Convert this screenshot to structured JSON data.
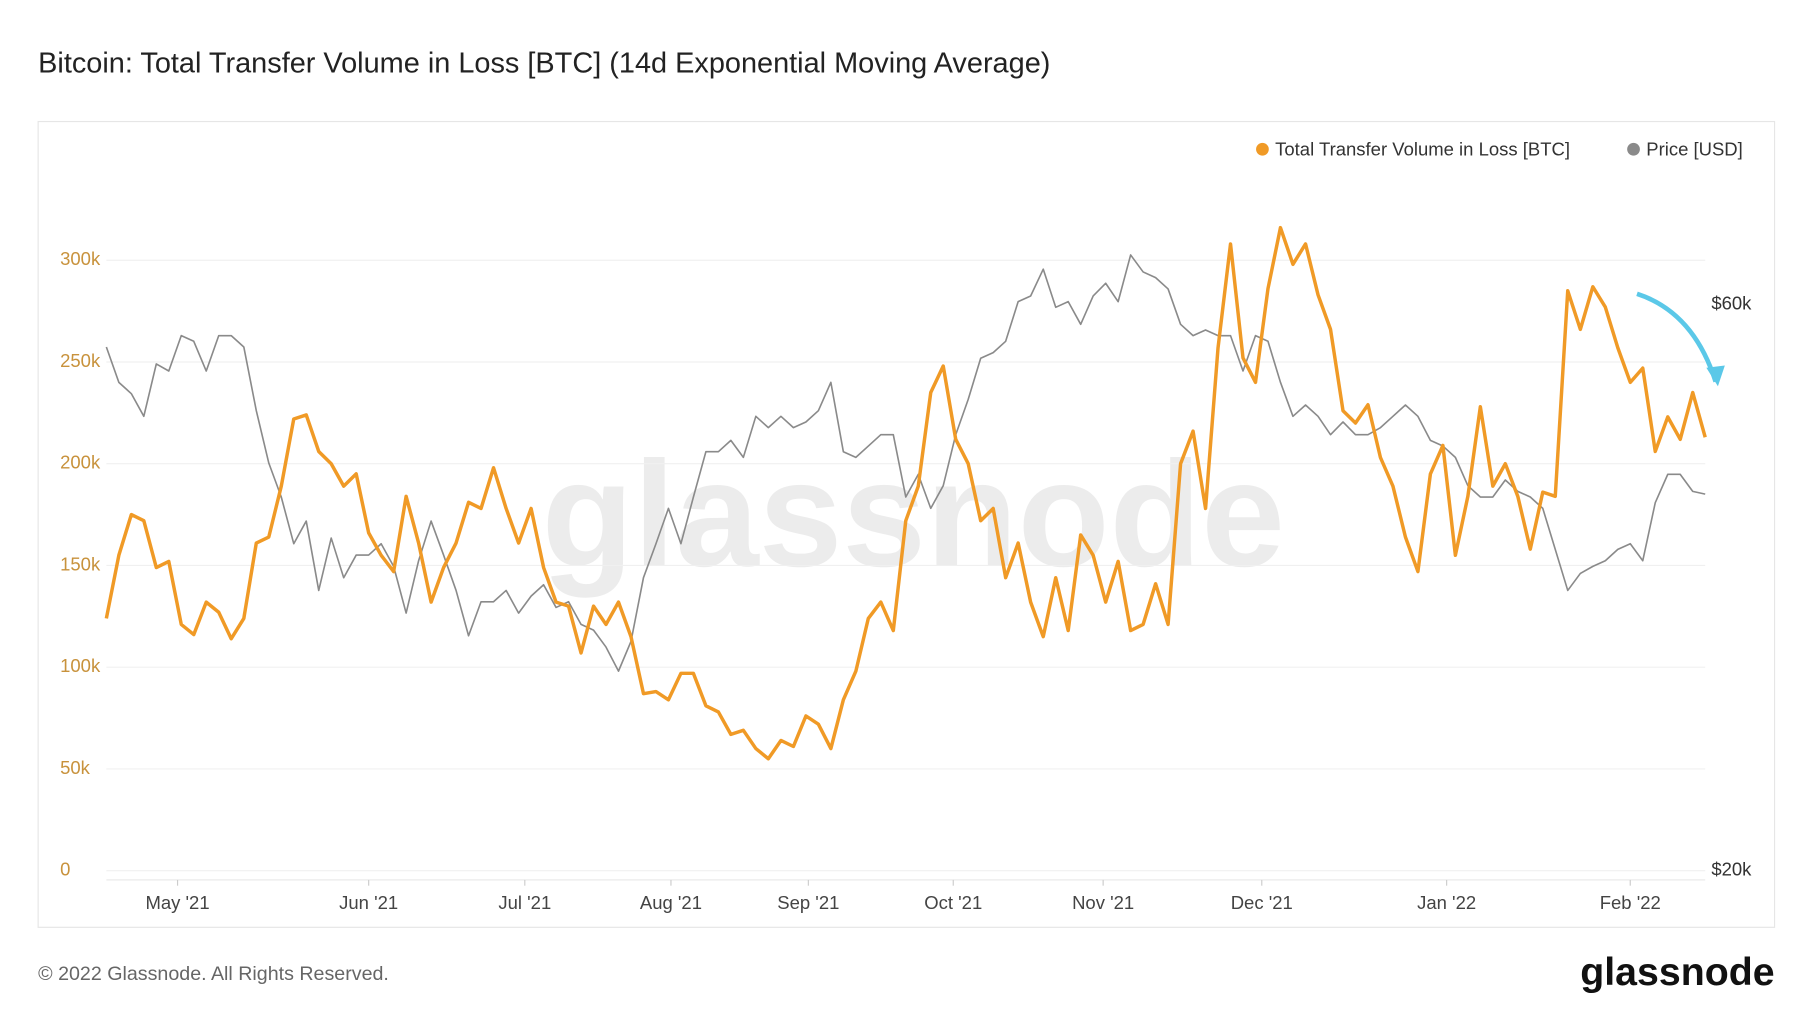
{
  "chart_data": {
    "type": "line",
    "title": "Bitcoin: Total Transfer Volume in Loss [BTC] (14d Exponential Moving Average)",
    "footer": "© 2022 Glassnode. All Rights Reserved.",
    "logo": "glassnode",
    "watermark": "glassnode",
    "xlim": [
      0,
      128
    ],
    "xticks": [
      {
        "value": 5.7,
        "label": "May '21"
      },
      {
        "value": 21,
        "label": "Jun '21"
      },
      {
        "value": 33.5,
        "label": "Jul '21"
      },
      {
        "value": 45.2,
        "label": "Aug '21"
      },
      {
        "value": 56.2,
        "label": "Sep '21"
      },
      {
        "value": 67.8,
        "label": "Oct '21"
      },
      {
        "value": 79.8,
        "label": "Nov '21"
      },
      {
        "value": 92.5,
        "label": "Dec '21"
      },
      {
        "value": 107.3,
        "label": "Jan '22"
      },
      {
        "value": 122,
        "label": "Feb '22"
      }
    ],
    "ylim": [
      0,
      320
    ],
    "yticks": [
      0,
      {
        "value": 50,
        "label": "50k"
      },
      {
        "value": 100,
        "label": "100k"
      },
      {
        "value": 150,
        "label": "150k"
      },
      {
        "value": 200,
        "label": "200k"
      },
      {
        "value": 250,
        "label": "250k"
      },
      {
        "value": 300,
        "label": "300k"
      }
    ],
    "y2lim": [
      20,
      66
    ],
    "y2ticks": [
      {
        "value": 20,
        "label": "$20k"
      },
      {
        "value": 60,
        "label": "$60k"
      }
    ],
    "grid": true,
    "legend": "top-right",
    "series": [
      {
        "name": "Total Transfer Volume in Loss [BTC]",
        "color": "#f09a26",
        "axis": "y",
        "values": [
          124,
          155,
          175,
          172,
          149,
          152,
          121,
          116,
          132,
          127,
          114,
          124,
          161,
          164,
          189,
          222,
          224,
          206,
          200,
          189,
          195,
          166,
          155,
          147,
          184,
          161,
          132,
          149,
          161,
          181,
          178,
          198,
          178,
          161,
          178,
          149,
          132,
          130,
          107,
          130,
          121,
          132,
          115,
          87,
          88,
          84,
          97,
          97,
          81,
          78,
          67,
          69,
          60,
          55,
          64,
          61,
          76,
          72,
          60,
          84,
          98,
          124,
          132,
          118,
          172,
          189,
          235,
          248,
          212,
          200,
          172,
          178,
          144,
          161,
          132,
          115,
          144,
          118,
          165,
          155,
          132,
          152,
          118,
          121,
          141,
          121,
          200,
          216,
          178,
          257,
          308,
          252,
          240,
          286,
          316,
          298,
          308,
          283,
          266,
          226,
          220,
          229,
          203,
          189,
          164,
          147,
          195,
          209,
          155,
          184,
          228,
          189,
          200,
          184,
          158,
          186,
          184,
          285,
          266,
          287,
          277,
          257,
          240,
          247,
          206,
          223,
          212,
          235,
          213
        ]
      },
      {
        "name": "Price [USD]",
        "color": "#8a8a8a",
        "axis": "y2",
        "values": [
          57.0,
          54.5,
          53.7,
          52.1,
          55.8,
          55.3,
          57.8,
          57.4,
          55.3,
          57.8,
          57.8,
          57.0,
          52.5,
          48.8,
          46.4,
          43.1,
          44.7,
          39.8,
          43.5,
          40.7,
          42.3,
          42.3,
          43.1,
          41.5,
          38.2,
          41.9,
          44.7,
          42.3,
          39.8,
          36.6,
          39.0,
          39.0,
          39.8,
          38.2,
          39.4,
          40.2,
          38.6,
          39.0,
          37.4,
          37.0,
          35.8,
          34.1,
          36.2,
          40.7,
          43.1,
          45.6,
          43.1,
          46.4,
          49.6,
          49.6,
          50.4,
          49.2,
          52.1,
          51.3,
          52.1,
          51.3,
          51.7,
          52.5,
          54.5,
          49.6,
          49.2,
          50.0,
          50.8,
          50.8,
          46.4,
          48.0,
          45.6,
          47.2,
          50.8,
          53.3,
          56.2,
          56.6,
          57.4,
          60.2,
          60.6,
          62.5,
          59.8,
          60.2,
          58.6,
          60.6,
          61.5,
          60.2,
          63.5,
          62.3,
          61.9,
          61.1,
          58.6,
          57.8,
          58.2,
          57.8,
          57.8,
          55.3,
          57.8,
          57.4,
          54.5,
          52.1,
          52.9,
          52.1,
          50.8,
          51.7,
          50.8,
          50.8,
          51.3,
          52.1,
          52.9,
          52.1,
          50.4,
          50.0,
          49.2,
          47.2,
          46.4,
          46.4,
          47.6,
          46.8,
          46.4,
          45.6,
          42.7,
          39.8,
          41.0,
          41.5,
          41.9,
          42.7,
          43.1,
          41.9,
          46.0,
          48.0,
          48.0,
          46.8,
          46.6
        ]
      }
    ]
  }
}
